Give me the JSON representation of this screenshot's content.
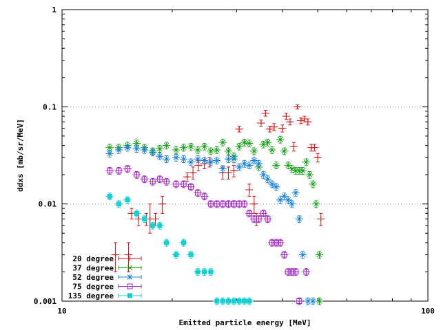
{
  "chart_data": {
    "type": "scatter",
    "title": "",
    "xlabel": "Emitted particle energy [MeV]",
    "ylabel": "ddxs [mb/sr/MeV]",
    "xscale": "log",
    "yscale": "log",
    "xlim": [
      10,
      100
    ],
    "ylim": [
      0.001,
      1
    ],
    "x_ticks": [
      {
        "v": 10,
        "label": "10"
      },
      {
        "v": 100,
        "label": "100"
      }
    ],
    "y_ticks": [
      {
        "v": 0.001,
        "label": "0.001"
      },
      {
        "v": 0.01,
        "label": "0.01"
      },
      {
        "v": 0.1,
        "label": "0.1"
      },
      {
        "v": 1,
        "label": "1"
      }
    ],
    "grid": "horizontal dotted at 0.01 and 0.1",
    "legend_position": "bottom-left",
    "series": [
      {
        "name": "20 degree",
        "color": "#d01010",
        "marker": "plus",
        "points": [
          {
            "x": 14.0,
            "y": 0.003,
            "ylo": 0.002,
            "yhi": 0.004
          },
          {
            "x": 15.2,
            "y": 0.003,
            "ylo": 0.002,
            "yhi": 0.004
          },
          {
            "x": 15.5,
            "y": 0.008,
            "ylo": 0.007,
            "yhi": 0.009
          },
          {
            "x": 16.2,
            "y": 0.007,
            "ylo": 0.006,
            "yhi": 0.008
          },
          {
            "x": 17.0,
            "y": 0.007,
            "ylo": 0.006,
            "yhi": 0.008
          },
          {
            "x": 17.4,
            "y": 0.007,
            "ylo": 0.005,
            "yhi": 0.01
          },
          {
            "x": 18.0,
            "y": 0.007,
            "ylo": 0.006,
            "yhi": 0.008
          },
          {
            "x": 18.8,
            "y": 0.01,
            "ylo": 0.008,
            "yhi": 0.012
          },
          {
            "x": 22.0,
            "y": 0.019,
            "ylo": 0.017,
            "yhi": 0.021
          },
          {
            "x": 22.8,
            "y": 0.021,
            "ylo": 0.018,
            "yhi": 0.024
          },
          {
            "x": 23.6,
            "y": 0.025,
            "ylo": 0.022,
            "yhi": 0.028
          },
          {
            "x": 24.5,
            "y": 0.026,
            "ylo": 0.023,
            "yhi": 0.029
          },
          {
            "x": 25.3,
            "y": 0.027,
            "ylo": 0.024,
            "yhi": 0.03
          },
          {
            "x": 27.5,
            "y": 0.021,
            "ylo": 0.018,
            "yhi": 0.024
          },
          {
            "x": 28.5,
            "y": 0.021,
            "ylo": 0.018,
            "yhi": 0.024
          },
          {
            "x": 29.5,
            "y": 0.022,
            "ylo": 0.019,
            "yhi": 0.025
          },
          {
            "x": 30.5,
            "y": 0.059,
            "ylo": 0.055,
            "yhi": 0.063
          },
          {
            "x": 32.5,
            "y": 0.014,
            "ylo": 0.012,
            "yhi": 0.016
          },
          {
            "x": 33.5,
            "y": 0.01,
            "ylo": 0.008,
            "yhi": 0.012
          },
          {
            "x": 34.0,
            "y": 0.007,
            "ylo": 0.006,
            "yhi": 0.008
          },
          {
            "x": 35.0,
            "y": 0.068,
            "ylo": 0.063,
            "yhi": 0.073
          },
          {
            "x": 36.0,
            "y": 0.086,
            "ylo": 0.08,
            "yhi": 0.092
          },
          {
            "x": 37.0,
            "y": 0.059,
            "ylo": 0.055,
            "yhi": 0.063
          },
          {
            "x": 38.0,
            "y": 0.062,
            "ylo": 0.057,
            "yhi": 0.067
          },
          {
            "x": 40.0,
            "y": 0.06,
            "ylo": 0.055,
            "yhi": 0.065
          },
          {
            "x": 41.0,
            "y": 0.08,
            "ylo": 0.074,
            "yhi": 0.086
          },
          {
            "x": 42.0,
            "y": 0.07,
            "ylo": 0.065,
            "yhi": 0.075
          },
          {
            "x": 43.0,
            "y": 0.039,
            "ylo": 0.035,
            "yhi": 0.043
          },
          {
            "x": 44.0,
            "y": 0.1,
            "ylo": 0.095,
            "yhi": 0.105
          },
          {
            "x": 45.0,
            "y": 0.072,
            "ylo": 0.067,
            "yhi": 0.077
          },
          {
            "x": 46.0,
            "y": 0.075,
            "ylo": 0.07,
            "yhi": 0.08
          },
          {
            "x": 47.0,
            "y": 0.07,
            "ylo": 0.065,
            "yhi": 0.075
          },
          {
            "x": 48.0,
            "y": 0.038,
            "ylo": 0.035,
            "yhi": 0.041
          },
          {
            "x": 49.0,
            "y": 0.038,
            "ylo": 0.035,
            "yhi": 0.041
          },
          {
            "x": 50.0,
            "y": 0.03,
            "ylo": 0.027,
            "yhi": 0.033
          },
          {
            "x": 51.0,
            "y": 0.007,
            "ylo": 0.006,
            "yhi": 0.008
          }
        ]
      },
      {
        "name": "37 degree",
        "color": "#10a010",
        "marker": "x",
        "points": [
          {
            "x": 13.5,
            "y": 0.038
          },
          {
            "x": 14.3,
            "y": 0.038
          },
          {
            "x": 15.1,
            "y": 0.04
          },
          {
            "x": 16.0,
            "y": 0.042
          },
          {
            "x": 16.8,
            "y": 0.038
          },
          {
            "x": 17.7,
            "y": 0.035
          },
          {
            "x": 18.5,
            "y": 0.037
          },
          {
            "x": 19.3,
            "y": 0.04
          },
          {
            "x": 20.5,
            "y": 0.036
          },
          {
            "x": 21.5,
            "y": 0.038
          },
          {
            "x": 22.5,
            "y": 0.039
          },
          {
            "x": 23.5,
            "y": 0.036
          },
          {
            "x": 24.5,
            "y": 0.039
          },
          {
            "x": 25.5,
            "y": 0.035
          },
          {
            "x": 26.5,
            "y": 0.036
          },
          {
            "x": 27.5,
            "y": 0.043
          },
          {
            "x": 28.5,
            "y": 0.035
          },
          {
            "x": 29.5,
            "y": 0.031
          },
          {
            "x": 30.5,
            "y": 0.039
          },
          {
            "x": 31.5,
            "y": 0.043
          },
          {
            "x": 32.5,
            "y": 0.042
          },
          {
            "x": 33.5,
            "y": 0.035
          },
          {
            "x": 34.5,
            "y": 0.024
          },
          {
            "x": 35.5,
            "y": 0.041
          },
          {
            "x": 36.5,
            "y": 0.043
          },
          {
            "x": 37.5,
            "y": 0.036
          },
          {
            "x": 38.5,
            "y": 0.025
          },
          {
            "x": 39.5,
            "y": 0.046
          },
          {
            "x": 40.5,
            "y": 0.035
          },
          {
            "x": 41.5,
            "y": 0.025
          },
          {
            "x": 42.5,
            "y": 0.023
          },
          {
            "x": 43.5,
            "y": 0.022
          },
          {
            "x": 44.5,
            "y": 0.022
          },
          {
            "x": 45.5,
            "y": 0.022
          },
          {
            "x": 46.5,
            "y": 0.027
          },
          {
            "x": 47.5,
            "y": 0.02
          },
          {
            "x": 48.5,
            "y": 0.016
          },
          {
            "x": 49.5,
            "y": 0.01
          },
          {
            "x": 50.5,
            "y": 0.003
          },
          {
            "x": 50.5,
            "y": 0.001
          }
        ]
      },
      {
        "name": "52 degree",
        "color": "#1880e0",
        "marker": "star",
        "points": [
          {
            "x": 13.5,
            "y": 0.033
          },
          {
            "x": 14.3,
            "y": 0.036
          },
          {
            "x": 15.1,
            "y": 0.038
          },
          {
            "x": 16.0,
            "y": 0.037
          },
          {
            "x": 16.8,
            "y": 0.036
          },
          {
            "x": 17.7,
            "y": 0.034
          },
          {
            "x": 18.5,
            "y": 0.031
          },
          {
            "x": 19.3,
            "y": 0.029
          },
          {
            "x": 20.5,
            "y": 0.03
          },
          {
            "x": 21.5,
            "y": 0.029
          },
          {
            "x": 22.5,
            "y": 0.027
          },
          {
            "x": 23.5,
            "y": 0.029
          },
          {
            "x": 24.5,
            "y": 0.028
          },
          {
            "x": 25.5,
            "y": 0.027
          },
          {
            "x": 26.5,
            "y": 0.028
          },
          {
            "x": 27.5,
            "y": 0.023
          },
          {
            "x": 28.5,
            "y": 0.029
          },
          {
            "x": 29.5,
            "y": 0.029
          },
          {
            "x": 30.5,
            "y": 0.024
          },
          {
            "x": 31.5,
            "y": 0.026
          },
          {
            "x": 32.5,
            "y": 0.025
          },
          {
            "x": 33.5,
            "y": 0.028
          },
          {
            "x": 34.5,
            "y": 0.026
          },
          {
            "x": 35.5,
            "y": 0.02
          },
          {
            "x": 36.5,
            "y": 0.018
          },
          {
            "x": 37.5,
            "y": 0.016
          },
          {
            "x": 38.5,
            "y": 0.015
          },
          {
            "x": 39.5,
            "y": 0.011
          },
          {
            "x": 40.5,
            "y": 0.012
          },
          {
            "x": 41.5,
            "y": 0.011
          },
          {
            "x": 42.5,
            "y": 0.01
          },
          {
            "x": 43.5,
            "y": 0.013
          },
          {
            "x": 44.5,
            "y": 0.007
          },
          {
            "x": 45.5,
            "y": 0.003
          },
          {
            "x": 47.0,
            "y": 0.001
          },
          {
            "x": 48.5,
            "y": 0.001
          }
        ]
      },
      {
        "name": "75 degree",
        "color": "#a020c0",
        "marker": "square",
        "points": [
          {
            "x": 13.5,
            "y": 0.022
          },
          {
            "x": 14.3,
            "y": 0.022
          },
          {
            "x": 15.1,
            "y": 0.023
          },
          {
            "x": 16.0,
            "y": 0.02
          },
          {
            "x": 16.8,
            "y": 0.018
          },
          {
            "x": 17.7,
            "y": 0.017
          },
          {
            "x": 18.5,
            "y": 0.018
          },
          {
            "x": 19.3,
            "y": 0.017
          },
          {
            "x": 20.5,
            "y": 0.016
          },
          {
            "x": 21.5,
            "y": 0.016
          },
          {
            "x": 22.5,
            "y": 0.015
          },
          {
            "x": 23.5,
            "y": 0.013
          },
          {
            "x": 24.5,
            "y": 0.012
          },
          {
            "x": 25.5,
            "y": 0.01
          },
          {
            "x": 26.5,
            "y": 0.01
          },
          {
            "x": 27.5,
            "y": 0.01
          },
          {
            "x": 28.5,
            "y": 0.01
          },
          {
            "x": 29.5,
            "y": 0.01
          },
          {
            "x": 30.5,
            "y": 0.01
          },
          {
            "x": 31.5,
            "y": 0.01
          },
          {
            "x": 32.5,
            "y": 0.008
          },
          {
            "x": 33.5,
            "y": 0.007
          },
          {
            "x": 34.5,
            "y": 0.007
          },
          {
            "x": 35.5,
            "y": 0.008
          },
          {
            "x": 36.5,
            "y": 0.007
          },
          {
            "x": 37.5,
            "y": 0.004
          },
          {
            "x": 38.5,
            "y": 0.004
          },
          {
            "x": 39.5,
            "y": 0.004
          },
          {
            "x": 40.5,
            "y": 0.003
          },
          {
            "x": 41.5,
            "y": 0.002
          },
          {
            "x": 42.5,
            "y": 0.002
          },
          {
            "x": 43.5,
            "y": 0.002
          },
          {
            "x": 44.5,
            "y": 0.001
          },
          {
            "x": 46.5,
            "y": 0.002
          }
        ]
      },
      {
        "name": "135 degree",
        "color": "#10d0d0",
        "marker": "filled-square",
        "points": [
          {
            "x": 13.5,
            "y": 0.012
          },
          {
            "x": 14.3,
            "y": 0.01
          },
          {
            "x": 15.1,
            "y": 0.011
          },
          {
            "x": 16.0,
            "y": 0.008
          },
          {
            "x": 16.8,
            "y": 0.007
          },
          {
            "x": 17.7,
            "y": 0.006
          },
          {
            "x": 18.5,
            "y": 0.006
          },
          {
            "x": 19.3,
            "y": 0.004
          },
          {
            "x": 20.5,
            "y": 0.003
          },
          {
            "x": 21.5,
            "y": 0.004
          },
          {
            "x": 22.5,
            "y": 0.003
          },
          {
            "x": 23.5,
            "y": 0.002
          },
          {
            "x": 24.5,
            "y": 0.002
          },
          {
            "x": 25.5,
            "y": 0.002
          },
          {
            "x": 26.5,
            "y": 0.001
          },
          {
            "x": 27.5,
            "y": 0.001
          },
          {
            "x": 28.5,
            "y": 0.001
          },
          {
            "x": 29.5,
            "y": 0.001
          },
          {
            "x": 30.5,
            "y": 0.001
          },
          {
            "x": 31.5,
            "y": 0.001
          },
          {
            "x": 32.5,
            "y": 0.001
          }
        ]
      }
    ]
  }
}
